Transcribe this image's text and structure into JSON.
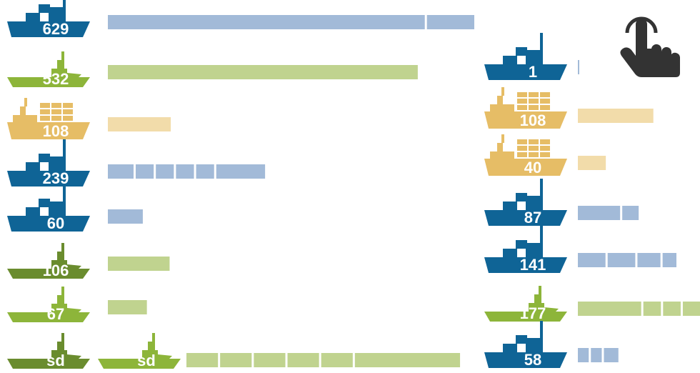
{
  "colors": {
    "navy": "#0f6496",
    "lime": "#8db53a",
    "olive": "#6a8c2e",
    "tan": "#e6bd66",
    "navy_bar": "#a2bad8",
    "lime_bar": "#c0d38f",
    "olive_bar": "#c0d38f",
    "tan_bar": "#f2dcaa",
    "icon_dark": "#333333",
    "label_white": "#ffffff"
  },
  "pointer_icon": "hand-pointer-icon",
  "chart_data": [
    {
      "type": "bar",
      "orientation": "horizontal",
      "group": "left",
      "title": "",
      "xlabel": "",
      "ylabel": "",
      "grid": false,
      "items": [
        {
          "label": "629",
          "value": 629,
          "ship": "cargo",
          "color": "navy",
          "segments": [
            0.87,
            0.13
          ]
        },
        {
          "label": "532",
          "value": 532,
          "ship": "tug",
          "color": "lime",
          "segments": [
            1.0
          ]
        },
        {
          "label": "108",
          "value": 108,
          "ship": "container",
          "color": "tan",
          "segments": [
            1.0
          ]
        },
        {
          "label": "239",
          "value": 239,
          "ship": "cargo",
          "color": "navy",
          "segments": [
            0.2,
            0.14,
            0.14,
            0.14,
            0.14,
            0.38
          ]
        },
        {
          "label": "60",
          "value": 60,
          "ship": "cargo",
          "color": "navy",
          "segments": [
            1.0
          ]
        },
        {
          "label": "106",
          "value": 106,
          "ship": "tug",
          "color": "olive",
          "segments": [
            1.0
          ]
        },
        {
          "label": "67",
          "value": 67,
          "ship": "tug",
          "color": "lime",
          "segments": [
            1.0
          ]
        },
        {
          "label": "sd",
          "value": null,
          "ship": "tug",
          "color": "olive",
          "segments": []
        }
      ],
      "extra_ship": {
        "label": "sd",
        "ship": "tug",
        "color": "lime",
        "bar_fraction": 0.62,
        "bar_color": "lime",
        "segments": [
          0.12,
          0.12,
          0.12,
          0.12,
          0.12,
          0.4
        ]
      }
    },
    {
      "type": "bar",
      "orientation": "horizontal",
      "group": "right",
      "title": "",
      "xlabel": "",
      "ylabel": "",
      "grid": false,
      "items": [
        {
          "label": "1",
          "value": 1,
          "ship": "cargo",
          "color": "navy",
          "segments": [
            1.0
          ]
        },
        {
          "label": "108",
          "value": 108,
          "ship": "container",
          "color": "tan",
          "segments": [
            1.0
          ]
        },
        {
          "label": "40",
          "value": 40,
          "ship": "container",
          "color": "tan",
          "segments": [
            1.0
          ]
        },
        {
          "label": "87",
          "value": 87,
          "ship": "cargo",
          "color": "navy",
          "segments": [
            0.72,
            0.28
          ]
        },
        {
          "label": "141",
          "value": 141,
          "ship": "cargo",
          "color": "navy",
          "segments": [
            0.3,
            0.3,
            0.25,
            0.15
          ]
        },
        {
          "label": "177",
          "value": 177,
          "ship": "tug",
          "color": "lime",
          "segments": [
            0.54,
            0.15,
            0.15,
            0.16
          ]
        },
        {
          "label": "58",
          "value": 58,
          "ship": "cargo",
          "color": "navy",
          "segments": [
            0.3,
            0.3,
            0.4
          ]
        }
      ]
    }
  ]
}
